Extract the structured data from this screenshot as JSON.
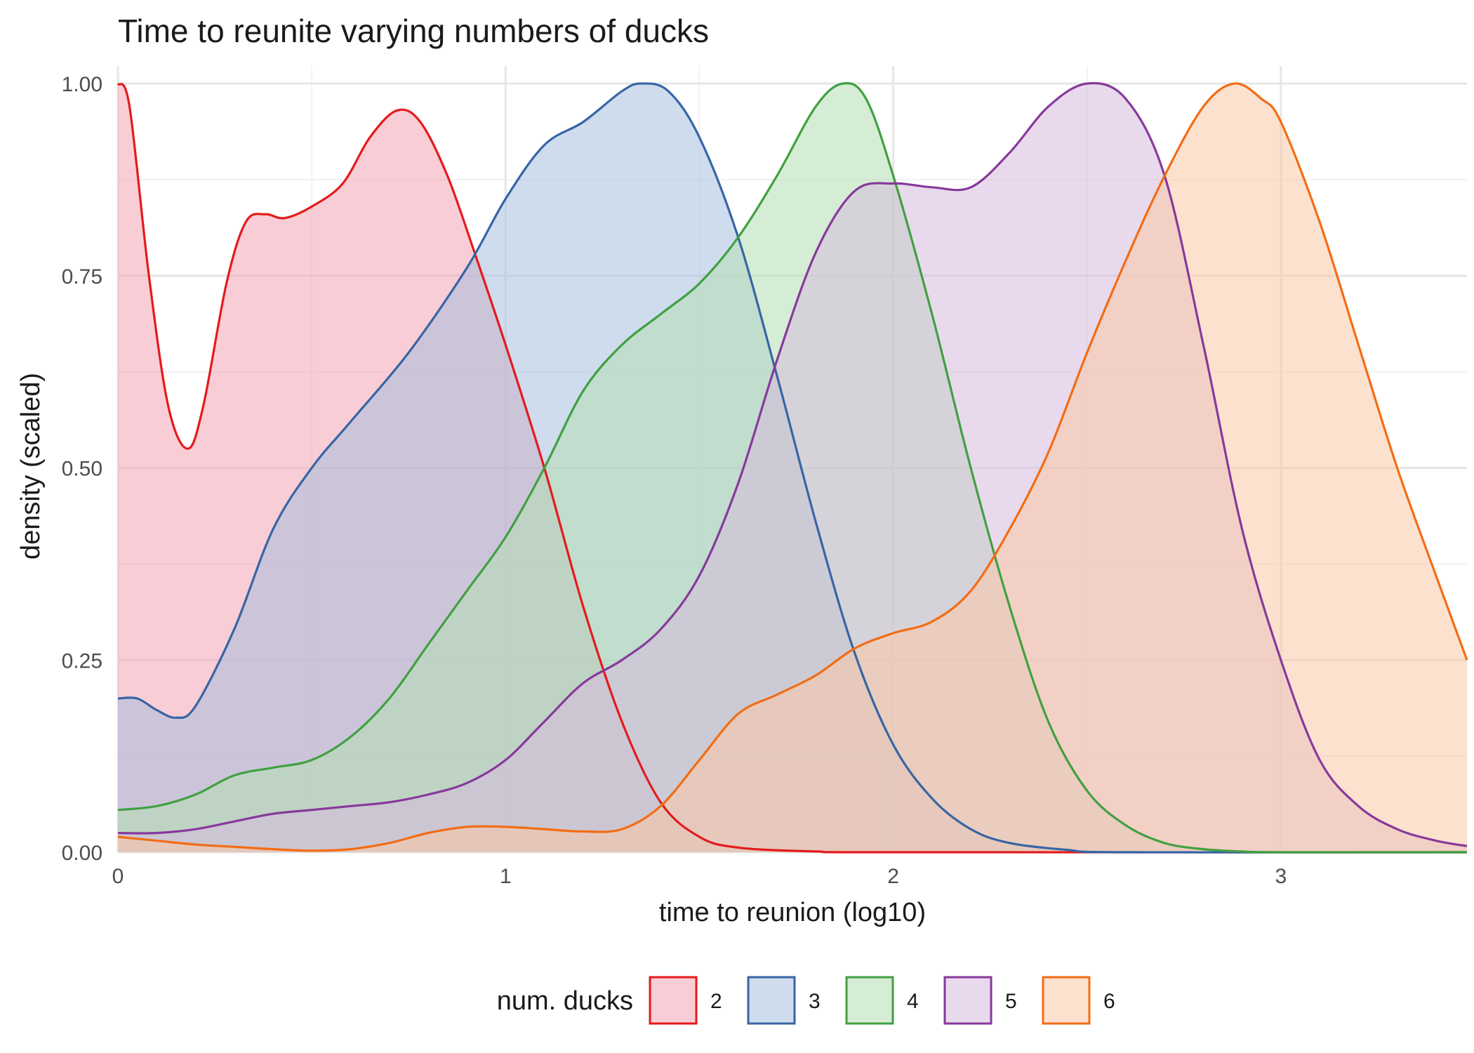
{
  "chart_data": {
    "type": "area",
    "subtype": "density",
    "title": "Time to reunite varying numbers of ducks",
    "xlabel": "time to reunion (log10)",
    "ylabel": "density (scaled)",
    "xlim": [
      0,
      3.48
    ],
    "ylim": [
      0,
      1
    ],
    "x_ticks": [
      "0",
      "1",
      "2",
      "3"
    ],
    "y_ticks": [
      "0.00",
      "0.25",
      "0.50",
      "0.75",
      "1.00"
    ],
    "grid": true,
    "legend": {
      "title": "num. ducks",
      "position": "bottom"
    },
    "series": [
      {
        "name": "2",
        "color": "#e41a1c",
        "fill": "#f4a4b2",
        "points": [
          [
            0,
            1.0
          ],
          [
            0.03,
            0.97
          ],
          [
            0.08,
            0.75
          ],
          [
            0.13,
            0.58
          ],
          [
            0.18,
            0.525
          ],
          [
            0.22,
            0.58
          ],
          [
            0.28,
            0.74
          ],
          [
            0.33,
            0.82
          ],
          [
            0.38,
            0.83
          ],
          [
            0.43,
            0.825
          ],
          [
            0.5,
            0.84
          ],
          [
            0.58,
            0.87
          ],
          [
            0.65,
            0.93
          ],
          [
            0.72,
            0.965
          ],
          [
            0.78,
            0.95
          ],
          [
            0.85,
            0.88
          ],
          [
            0.92,
            0.78
          ],
          [
            1.0,
            0.66
          ],
          [
            1.1,
            0.5
          ],
          [
            1.2,
            0.32
          ],
          [
            1.3,
            0.17
          ],
          [
            1.4,
            0.065
          ],
          [
            1.5,
            0.02
          ],
          [
            1.6,
            0.006
          ],
          [
            1.8,
            0.001
          ],
          [
            2.0,
            0.0
          ],
          [
            3.48,
            0.0
          ]
        ]
      },
      {
        "name": "3",
        "color": "#3765a5",
        "fill": "#a7c0df",
        "points": [
          [
            0,
            0.2
          ],
          [
            0.05,
            0.2
          ],
          [
            0.1,
            0.185
          ],
          [
            0.15,
            0.175
          ],
          [
            0.2,
            0.19
          ],
          [
            0.3,
            0.29
          ],
          [
            0.4,
            0.42
          ],
          [
            0.5,
            0.5
          ],
          [
            0.6,
            0.56
          ],
          [
            0.75,
            0.65
          ],
          [
            0.9,
            0.76
          ],
          [
            1.0,
            0.85
          ],
          [
            1.1,
            0.92
          ],
          [
            1.2,
            0.95
          ],
          [
            1.3,
            0.99
          ],
          [
            1.35,
            1.0
          ],
          [
            1.42,
            0.99
          ],
          [
            1.5,
            0.93
          ],
          [
            1.6,
            0.8
          ],
          [
            1.7,
            0.62
          ],
          [
            1.8,
            0.43
          ],
          [
            1.9,
            0.26
          ],
          [
            2.0,
            0.14
          ],
          [
            2.1,
            0.07
          ],
          [
            2.2,
            0.03
          ],
          [
            2.3,
            0.012
          ],
          [
            2.45,
            0.003
          ],
          [
            2.6,
            0.0
          ],
          [
            3.48,
            0.0
          ]
        ]
      },
      {
        "name": "4",
        "color": "#41a041",
        "fill": "#b5dfb2",
        "points": [
          [
            0,
            0.055
          ],
          [
            0.1,
            0.06
          ],
          [
            0.2,
            0.075
          ],
          [
            0.3,
            0.1
          ],
          [
            0.4,
            0.11
          ],
          [
            0.5,
            0.12
          ],
          [
            0.6,
            0.15
          ],
          [
            0.7,
            0.2
          ],
          [
            0.8,
            0.27
          ],
          [
            0.9,
            0.34
          ],
          [
            1.0,
            0.41
          ],
          [
            1.1,
            0.5
          ],
          [
            1.2,
            0.6
          ],
          [
            1.3,
            0.66
          ],
          [
            1.4,
            0.7
          ],
          [
            1.5,
            0.74
          ],
          [
            1.6,
            0.8
          ],
          [
            1.7,
            0.88
          ],
          [
            1.8,
            0.97
          ],
          [
            1.87,
            1.0
          ],
          [
            1.93,
            0.98
          ],
          [
            2.0,
            0.88
          ],
          [
            2.1,
            0.7
          ],
          [
            2.2,
            0.5
          ],
          [
            2.3,
            0.32
          ],
          [
            2.4,
            0.17
          ],
          [
            2.5,
            0.08
          ],
          [
            2.6,
            0.035
          ],
          [
            2.7,
            0.012
          ],
          [
            2.8,
            0.004
          ],
          [
            2.9,
            0.001
          ],
          [
            3.0,
            0.0
          ],
          [
            3.48,
            0.0
          ]
        ]
      },
      {
        "name": "5",
        "color": "#87399b",
        "fill": "#d5bcdc",
        "points": [
          [
            0,
            0.025
          ],
          [
            0.1,
            0.025
          ],
          [
            0.2,
            0.03
          ],
          [
            0.3,
            0.04
          ],
          [
            0.4,
            0.05
          ],
          [
            0.5,
            0.055
          ],
          [
            0.6,
            0.06
          ],
          [
            0.7,
            0.065
          ],
          [
            0.8,
            0.075
          ],
          [
            0.9,
            0.09
          ],
          [
            1.0,
            0.12
          ],
          [
            1.1,
            0.17
          ],
          [
            1.2,
            0.22
          ],
          [
            1.3,
            0.25
          ],
          [
            1.4,
            0.29
          ],
          [
            1.5,
            0.36
          ],
          [
            1.6,
            0.48
          ],
          [
            1.7,
            0.64
          ],
          [
            1.8,
            0.78
          ],
          [
            1.9,
            0.86
          ],
          [
            2.0,
            0.87
          ],
          [
            2.1,
            0.865
          ],
          [
            2.2,
            0.865
          ],
          [
            2.3,
            0.91
          ],
          [
            2.4,
            0.97
          ],
          [
            2.5,
            1.0
          ],
          [
            2.6,
            0.98
          ],
          [
            2.7,
            0.88
          ],
          [
            2.8,
            0.66
          ],
          [
            2.9,
            0.42
          ],
          [
            3.0,
            0.25
          ],
          [
            3.1,
            0.12
          ],
          [
            3.2,
            0.06
          ],
          [
            3.3,
            0.03
          ],
          [
            3.4,
            0.015
          ],
          [
            3.48,
            0.008
          ]
        ]
      },
      {
        "name": "6",
        "color": "#f36c14",
        "fill": "#fcc9a8",
        "points": [
          [
            0,
            0.02
          ],
          [
            0.1,
            0.015
          ],
          [
            0.2,
            0.01
          ],
          [
            0.3,
            0.007
          ],
          [
            0.4,
            0.004
          ],
          [
            0.5,
            0.002
          ],
          [
            0.6,
            0.004
          ],
          [
            0.7,
            0.012
          ],
          [
            0.8,
            0.025
          ],
          [
            0.9,
            0.033
          ],
          [
            1.0,
            0.033
          ],
          [
            1.1,
            0.03
          ],
          [
            1.2,
            0.027
          ],
          [
            1.3,
            0.03
          ],
          [
            1.4,
            0.06
          ],
          [
            1.5,
            0.12
          ],
          [
            1.6,
            0.18
          ],
          [
            1.7,
            0.205
          ],
          [
            1.8,
            0.23
          ],
          [
            1.9,
            0.265
          ],
          [
            2.0,
            0.285
          ],
          [
            2.1,
            0.3
          ],
          [
            2.2,
            0.34
          ],
          [
            2.3,
            0.42
          ],
          [
            2.4,
            0.52
          ],
          [
            2.5,
            0.65
          ],
          [
            2.6,
            0.77
          ],
          [
            2.7,
            0.88
          ],
          [
            2.8,
            0.97
          ],
          [
            2.88,
            1.0
          ],
          [
            2.95,
            0.98
          ],
          [
            3.0,
            0.95
          ],
          [
            3.1,
            0.82
          ],
          [
            3.2,
            0.66
          ],
          [
            3.3,
            0.5
          ],
          [
            3.4,
            0.36
          ],
          [
            3.48,
            0.25
          ]
        ]
      }
    ]
  }
}
